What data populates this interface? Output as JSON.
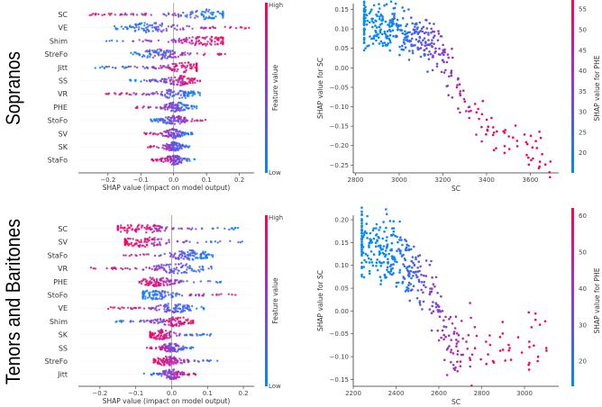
{
  "colors": {
    "low": "#008afb",
    "mid": "#8c3bdb",
    "high": "#ff0052"
  },
  "rows": [
    {
      "title": "Sopranos"
    },
    {
      "title": "Tenors and Baritones"
    }
  ],
  "chart_data": [
    {
      "type": "scatter",
      "subtype": "shap-beeswarm",
      "group": "Sopranos",
      "xlabel": "SHAP value (impact on model output)",
      "xticks": [
        -0.2,
        -0.1,
        0.0,
        0.1,
        0.2
      ],
      "xlim": [
        -0.29,
        0.245
      ],
      "colorbar": {
        "label": "Feature value",
        "high": "High",
        "low": "Low"
      },
      "features": [
        {
          "name": "SC",
          "min": -0.26,
          "max": 0.15,
          "high_side": "left",
          "peak": 0.1
        },
        {
          "name": "VE",
          "min": -0.18,
          "max": 0.23,
          "high_side": "right",
          "peak": -0.07
        },
        {
          "name": "Shim",
          "min": -0.25,
          "max": 0.15,
          "high_side": "right",
          "peak": 0.1
        },
        {
          "name": "StreFo",
          "min": -0.15,
          "max": 0.17,
          "high_side": "right",
          "peak": -0.04
        },
        {
          "name": "Jitt",
          "min": -0.24,
          "max": 0.07,
          "high_side": "right",
          "peak": 0.04
        },
        {
          "name": "SS",
          "min": -0.14,
          "max": 0.08,
          "high_side": "right",
          "peak": 0.02
        },
        {
          "name": "VR",
          "min": -0.21,
          "max": 0.08,
          "high_side": "left",
          "peak": 0.01
        },
        {
          "name": "PHE",
          "min": -0.12,
          "max": 0.07,
          "high_side": "left",
          "peak": 0.01
        },
        {
          "name": "StoFo",
          "min": -0.07,
          "max": 0.11,
          "high_side": "right",
          "peak": 0.0
        },
        {
          "name": "SV",
          "min": -0.09,
          "max": 0.06,
          "high_side": "left",
          "peak": 0.0
        },
        {
          "name": "SK",
          "min": -0.08,
          "max": 0.05,
          "high_side": "left",
          "peak": 0.0
        },
        {
          "name": "StaFo",
          "min": -0.07,
          "max": 0.07,
          "high_side": "left",
          "peak": 0.0
        }
      ]
    },
    {
      "type": "scatter",
      "subtype": "shap-dependence",
      "group": "Sopranos",
      "xlabel": "SC",
      "ylabel": "SHAP value for SC",
      "xticks": [
        2800,
        3000,
        3200,
        3400,
        3600
      ],
      "yticks": [
        0.15,
        0.1,
        0.05,
        0.0,
        -0.05,
        -0.1,
        -0.15,
        -0.2,
        -0.25
      ],
      "xlim": [
        2790,
        3730
      ],
      "ylim": [
        -0.27,
        0.165
      ],
      "colorbar": {
        "label": "SHAP value for PHE",
        "ticks": [
          20,
          25,
          30,
          35,
          40,
          45,
          50,
          55
        ],
        "range": [
          15,
          58
        ]
      },
      "trend": [
        [
          2840,
          0.11
        ],
        [
          3000,
          0.1
        ],
        [
          3100,
          0.08
        ],
        [
          3200,
          0.03
        ],
        [
          3300,
          -0.08
        ],
        [
          3400,
          -0.15
        ],
        [
          3500,
          -0.19
        ],
        [
          3700,
          -0.23
        ]
      ],
      "x_range": [
        2840,
        3700
      ],
      "noise": 0.03,
      "n_points": 420
    },
    {
      "type": "scatter",
      "subtype": "shap-beeswarm",
      "group": "Tenors and Baritones",
      "xlabel": "SHAP value (impact on model output)",
      "xticks": [
        -0.2,
        -0.1,
        0.0,
        0.1,
        0.2
      ],
      "xlim": [
        -0.26,
        0.23
      ],
      "colorbar": {
        "label": "Feature value",
        "high": "High",
        "low": "Low"
      },
      "features": [
        {
          "name": "SC",
          "min": -0.15,
          "max": 0.2,
          "high_side": "left",
          "peak": -0.09
        },
        {
          "name": "SV",
          "min": -0.13,
          "max": 0.2,
          "high_side": "left",
          "peak": -0.08
        },
        {
          "name": "StaFo",
          "min": -0.17,
          "max": 0.12,
          "high_side": "left",
          "peak": 0.05
        },
        {
          "name": "VR",
          "min": -0.24,
          "max": 0.15,
          "high_side": "left",
          "peak": 0.02
        },
        {
          "name": "PHE",
          "min": -0.09,
          "max": 0.14,
          "high_side": "left",
          "peak": -0.04
        },
        {
          "name": "StoFo",
          "min": -0.08,
          "max": 0.19,
          "high_side": "right",
          "peak": -0.05
        },
        {
          "name": "VE",
          "min": -0.18,
          "max": 0.09,
          "high_side": "left",
          "peak": 0.01
        },
        {
          "name": "Shim",
          "min": -0.16,
          "max": 0.06,
          "high_side": "right",
          "peak": 0.01
        },
        {
          "name": "SK",
          "min": -0.06,
          "max": 0.11,
          "high_side": "left",
          "peak": -0.03
        },
        {
          "name": "SS",
          "min": -0.07,
          "max": 0.06,
          "high_side": "left",
          "peak": 0.0
        },
        {
          "name": "StreFo",
          "min": -0.05,
          "max": 0.13,
          "high_side": "left",
          "peak": -0.01
        },
        {
          "name": "Jitt",
          "min": -0.08,
          "max": 0.07,
          "high_side": "right",
          "peak": 0.0
        }
      ]
    },
    {
      "type": "scatter",
      "subtype": "shap-dependence",
      "group": "Tenors and Baritones",
      "xlabel": "SC",
      "ylabel": "SHAP value for SC",
      "xticks": [
        2200,
        2400,
        2600,
        2800,
        3000
      ],
      "yticks": [
        0.2,
        0.15,
        0.1,
        0.05,
        0.0,
        -0.05,
        -0.1,
        -0.15
      ],
      "xlim": [
        2200,
        3160
      ],
      "ylim": [
        -0.165,
        0.21
      ],
      "colorbar": {
        "label": "SHAP value for PHE",
        "ticks": [
          20,
          30,
          40,
          50,
          60
        ],
        "range": [
          13,
          62
        ]
      },
      "trend": [
        [
          2240,
          0.15
        ],
        [
          2400,
          0.12
        ],
        [
          2500,
          0.08
        ],
        [
          2600,
          0.01
        ],
        [
          2650,
          -0.08
        ],
        [
          2800,
          -0.08
        ],
        [
          3000,
          -0.07
        ],
        [
          3110,
          -0.07
        ]
      ],
      "x_range": [
        2240,
        3110
      ],
      "noise": 0.035,
      "n_points": 420
    }
  ]
}
